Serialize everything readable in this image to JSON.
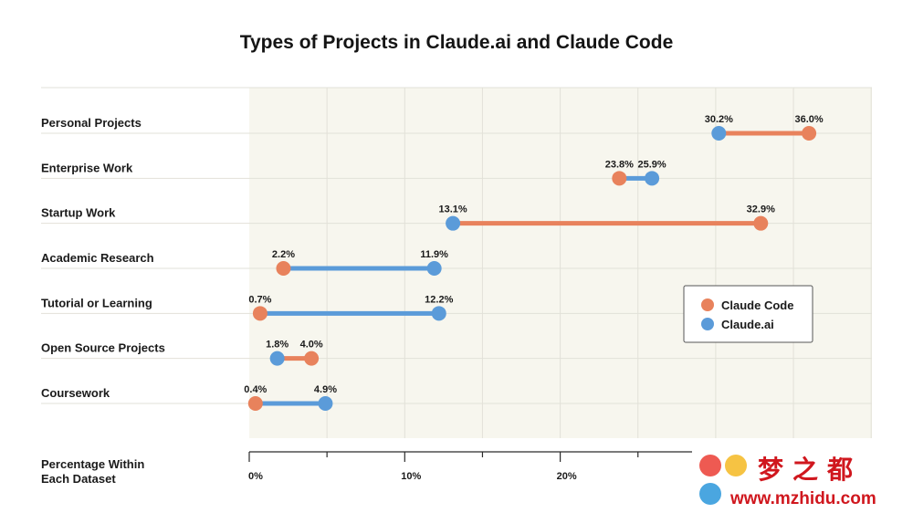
{
  "chart_data": {
    "type": "dumbbell",
    "title": "Types of Projects in Claude.ai and Claude Code",
    "xlabel": "Percentage Within Each Dataset",
    "xlabel_lines": [
      "Percentage Within",
      "Each Dataset"
    ],
    "ylabel": "",
    "xlim": [
      0,
      40
    ],
    "x_ticks": [
      0,
      10,
      20
    ],
    "x_tick_labels": [
      "0%",
      "10%",
      "20%"
    ],
    "categories": [
      "Personal Projects",
      "Enterprise Work",
      "Startup Work",
      "Academic Research",
      "Tutorial or Learning",
      "Open Source Projects",
      "Coursework"
    ],
    "series": [
      {
        "name": "Claude Code",
        "color": "#e8825c",
        "values": [
          36.0,
          23.8,
          32.9,
          2.2,
          0.7,
          4.0,
          0.4
        ]
      },
      {
        "name": "Claude.ai",
        "color": "#5b9bd9",
        "values": [
          30.2,
          25.9,
          13.1,
          11.9,
          12.2,
          1.8,
          4.9
        ]
      }
    ],
    "data_labels": {
      "Claude Code": [
        "36.0%",
        "23.8%",
        "32.9%",
        "2.2%",
        "0.7%",
        "4.0%",
        "0.4%"
      ],
      "Claude.ai": [
        "30.2%",
        "25.9%",
        "13.1%",
        "11.9%",
        "12.2%",
        "1.8%",
        "4.9%"
      ]
    },
    "legend": {
      "position": "right",
      "entries": [
        "Claude Code",
        "Claude.ai"
      ]
    },
    "grid": true
  },
  "watermark": {
    "brand": "梦之都",
    "url": "www.mzhidu.com"
  },
  "colors": {
    "plot_bg": "#f7f6ee",
    "grid": "#e2e1d8",
    "claude_code": "#e8825c",
    "claude_ai": "#5b9bd9"
  }
}
